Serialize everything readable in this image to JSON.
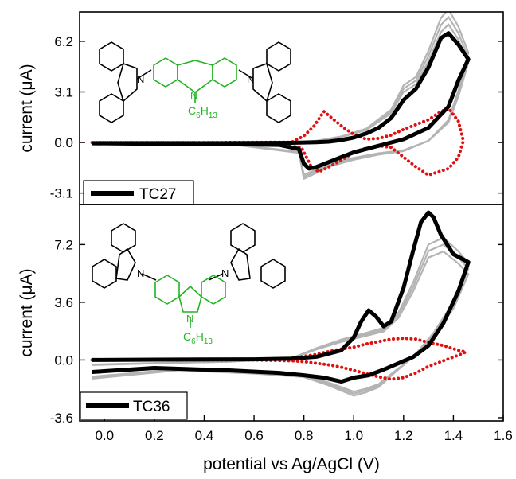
{
  "chart_data": [
    {
      "type": "line",
      "panel": "top",
      "title": "",
      "ylabel": "current (μA)",
      "xlim": [
        -0.1,
        1.6
      ],
      "ylim": [
        -3.8,
        8.0
      ],
      "yticks": [
        -3.1,
        0.0,
        3.1,
        6.2
      ],
      "ytick_labels": [
        "-3.1",
        "0.0",
        "3.1",
        "6.2"
      ],
      "legend": {
        "label": "TC27",
        "placement": "bottom-left"
      },
      "molecule": {
        "substituent": "C6H13",
        "substituent_colored": true
      },
      "series": [
        {
          "name": "TC27",
          "color": "#000000",
          "style": "solid-thick",
          "x": [
            -0.05,
            0.2,
            0.4,
            0.6,
            0.75,
            0.8,
            0.85,
            0.9,
            0.95,
            1.0,
            1.05,
            1.1,
            1.15,
            1.2,
            1.25,
            1.3,
            1.35,
            1.38,
            1.42,
            1.46,
            1.42,
            1.38,
            1.3,
            1.2,
            1.1,
            1.0,
            0.95,
            0.9,
            0.85,
            0.82,
            0.8,
            0.78,
            0.7,
            0.5,
            0.2,
            -0.05
          ],
          "y": [
            -0.05,
            -0.05,
            -0.05,
            -0.03,
            -0.02,
            0.0,
            0.02,
            0.05,
            0.15,
            0.3,
            0.55,
            0.9,
            1.5,
            2.6,
            3.3,
            4.6,
            6.4,
            6.7,
            6.0,
            5.1,
            3.8,
            2.2,
            0.9,
            0.2,
            -0.2,
            -0.6,
            -0.9,
            -1.2,
            -1.5,
            -1.6,
            -1.3,
            -0.4,
            -0.15,
            -0.1,
            -0.08,
            -0.05
          ]
        },
        {
          "name": "",
          "color": "#b4b4b4",
          "style": "solid-thin",
          "x": [
            -0.05,
            0.4,
            0.75,
            0.85,
            0.95,
            1.05,
            1.15,
            1.2,
            1.25,
            1.3,
            1.35,
            1.38,
            1.42,
            1.46,
            1.42,
            1.38,
            1.3,
            1.2,
            1.1,
            1.0,
            0.9,
            0.83,
            0.8,
            0.78,
            0.5,
            -0.05
          ],
          "y": [
            -0.05,
            -0.05,
            -0.02,
            0.1,
            0.35,
            0.8,
            1.9,
            3.3,
            3.8,
            5.3,
            7.2,
            7.7,
            6.7,
            5.2,
            3.0,
            1.3,
            0.1,
            -0.5,
            -0.7,
            -1.0,
            -1.4,
            -1.9,
            -2.1,
            -0.6,
            -0.1,
            -0.05
          ]
        },
        {
          "name": "",
          "color": "#e01010",
          "style": "dotted",
          "x": [
            -0.05,
            0.4,
            0.75,
            0.8,
            0.84,
            0.88,
            0.92,
            0.96,
            1.0,
            1.05,
            1.1,
            1.15,
            1.2,
            1.25,
            1.3,
            1.35,
            1.38,
            1.42,
            1.44,
            1.42,
            1.38,
            1.34,
            1.3,
            1.25,
            1.2,
            1.15,
            1.1,
            1.05,
            1.0,
            0.95,
            0.9,
            0.86,
            0.83,
            0.81,
            0.79,
            0.6,
            0.3,
            -0.05
          ],
          "y": [
            0.0,
            0.0,
            0.02,
            0.4,
            1.0,
            1.9,
            1.4,
            0.9,
            0.5,
            0.2,
            0.25,
            0.45,
            0.8,
            1.1,
            1.4,
            1.9,
            2.1,
            1.3,
            0.1,
            -0.9,
            -1.6,
            -1.8,
            -2.0,
            -1.5,
            -0.9,
            -0.3,
            -0.2,
            -0.35,
            -0.6,
            -1.1,
            -1.5,
            -1.8,
            -1.5,
            -0.9,
            -0.3,
            -0.02,
            0.0,
            0.0
          ]
        }
      ]
    },
    {
      "type": "line",
      "panel": "bottom",
      "title": "",
      "xlabel": "potential vs Ag/AgCl (V)",
      "ylabel": "current (μA)",
      "xlim": [
        -0.1,
        1.6
      ],
      "ylim": [
        -3.8,
        9.7
      ],
      "xticks": [
        0.0,
        0.2,
        0.4,
        0.6,
        0.8,
        1.0,
        1.2,
        1.4,
        1.6
      ],
      "xtick_labels": [
        "0.0",
        "0.2",
        "0.4",
        "0.6",
        "0.8",
        "1.0",
        "1.2",
        "1.4",
        "1.6"
      ],
      "yticks": [
        -3.6,
        0.0,
        3.6,
        7.2
      ],
      "ytick_labels": [
        "-3.6",
        "0.0",
        "3.6",
        "7.2"
      ],
      "legend": {
        "label": "TC36",
        "placement": "bottom-left"
      },
      "molecule": {
        "substituent": "C6H13",
        "substituent_colored": true
      },
      "series": [
        {
          "name": "TC36",
          "color": "#000000",
          "style": "solid-thick",
          "x": [
            -0.05,
            0.2,
            0.4,
            0.6,
            0.75,
            0.85,
            0.95,
            1.0,
            1.03,
            1.06,
            1.09,
            1.12,
            1.15,
            1.2,
            1.24,
            1.27,
            1.3,
            1.32,
            1.35,
            1.4,
            1.46,
            1.42,
            1.36,
            1.3,
            1.24,
            1.18,
            1.12,
            1.06,
            1.0,
            0.95,
            0.88,
            0.8,
            0.7,
            0.5,
            0.2,
            -0.05
          ],
          "y": [
            0.0,
            0.02,
            0.03,
            0.04,
            0.08,
            0.2,
            0.6,
            1.4,
            2.4,
            3.1,
            2.7,
            2.1,
            2.4,
            4.5,
            6.9,
            8.6,
            9.2,
            8.9,
            7.8,
            6.6,
            6.1,
            4.3,
            2.3,
            0.9,
            0.2,
            -0.2,
            -0.6,
            -0.95,
            -1.1,
            -1.35,
            -1.1,
            -0.95,
            -0.8,
            -0.65,
            -0.5,
            -0.75
          ]
        },
        {
          "name": "",
          "color": "#b4b4b4",
          "style": "solid-thin",
          "x": [
            -0.05,
            0.2,
            0.5,
            0.75,
            0.85,
            0.95,
            1.05,
            1.12,
            1.18,
            1.24,
            1.3,
            1.36,
            1.42,
            1.46,
            1.4,
            1.32,
            1.24,
            1.16,
            1.1,
            1.05,
            1.0,
            0.9,
            0.8,
            0.6,
            0.3,
            -0.05
          ],
          "y": [
            -0.3,
            -0.2,
            -0.1,
            0.1,
            0.7,
            1.2,
            1.6,
            1.9,
            2.8,
            4.6,
            6.8,
            7.2,
            6.4,
            5.7,
            3.4,
            1.6,
            0.2,
            -0.8,
            -1.6,
            -1.9,
            -2.1,
            -1.5,
            -1.0,
            -0.8,
            -0.6,
            -1.1
          ]
        },
        {
          "name": "",
          "color": "#e01010",
          "style": "dotted",
          "x": [
            -0.05,
            0.3,
            0.6,
            0.75,
            0.85,
            0.92,
            1.0,
            1.05,
            1.1,
            1.15,
            1.2,
            1.25,
            1.3,
            1.36,
            1.42,
            1.45,
            1.42,
            1.35,
            1.3,
            1.25,
            1.2,
            1.15,
            1.1,
            1.05,
            1.0,
            0.95,
            0.9,
            0.85,
            0.8,
            0.75,
            0.6,
            0.3,
            -0.05
          ],
          "y": [
            0.0,
            0.0,
            0.02,
            0.1,
            0.35,
            0.6,
            0.8,
            1.0,
            1.15,
            1.3,
            1.35,
            1.3,
            1.1,
            0.9,
            0.6,
            0.5,
            0.3,
            -0.1,
            -0.4,
            -0.8,
            -1.1,
            -1.2,
            -1.05,
            -0.85,
            -0.65,
            -0.45,
            -0.3,
            -0.2,
            -0.1,
            -0.05,
            0.0,
            0.0,
            0.0
          ]
        }
      ]
    }
  ]
}
